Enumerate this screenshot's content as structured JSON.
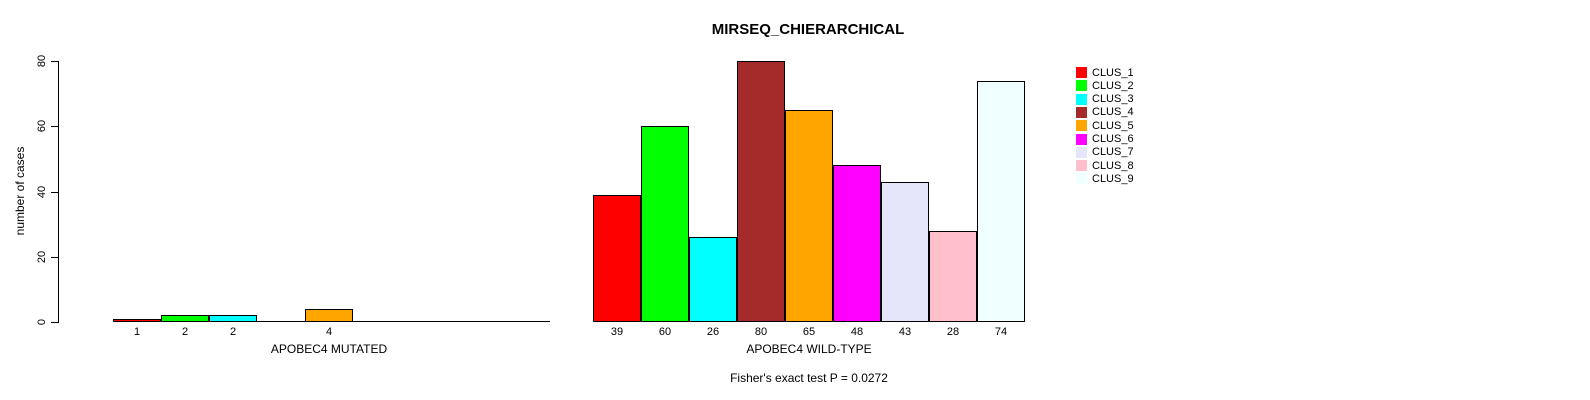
{
  "chart_data": {
    "type": "bar",
    "title": "MIRSEQ_CHIERARCHICAL",
    "ylabel": "number of cases",
    "xlabel": "",
    "ylim": [
      0,
      80
    ],
    "yticks": [
      0,
      20,
      40,
      60,
      80
    ],
    "grid": false,
    "legend_position": "right-top",
    "series_labels": [
      "CLUS_1",
      "CLUS_2",
      "CLUS_3",
      "CLUS_4",
      "CLUS_5",
      "CLUS_6",
      "CLUS_7",
      "CLUS_8",
      "CLUS_9"
    ],
    "series_colors": [
      "#FF0000",
      "#00FF00",
      "#00FFFF",
      "#A52A2A",
      "#FFA500",
      "#FF00FF",
      "#E6E6FA",
      "#FFC0CB",
      "#F0FFFF"
    ],
    "groups": [
      {
        "label": "APOBEC4 MUTATED",
        "values": [
          1,
          2,
          2,
          0,
          4,
          0,
          0,
          0,
          0
        ]
      },
      {
        "label": "APOBEC4 WILD-TYPE",
        "values": [
          39,
          60,
          26,
          80,
          65,
          48,
          43,
          28,
          74
        ]
      }
    ],
    "value_labels_rule": "shown under bars with value > 0",
    "annotation": "Fisher's exact test P = 0.0272"
  }
}
